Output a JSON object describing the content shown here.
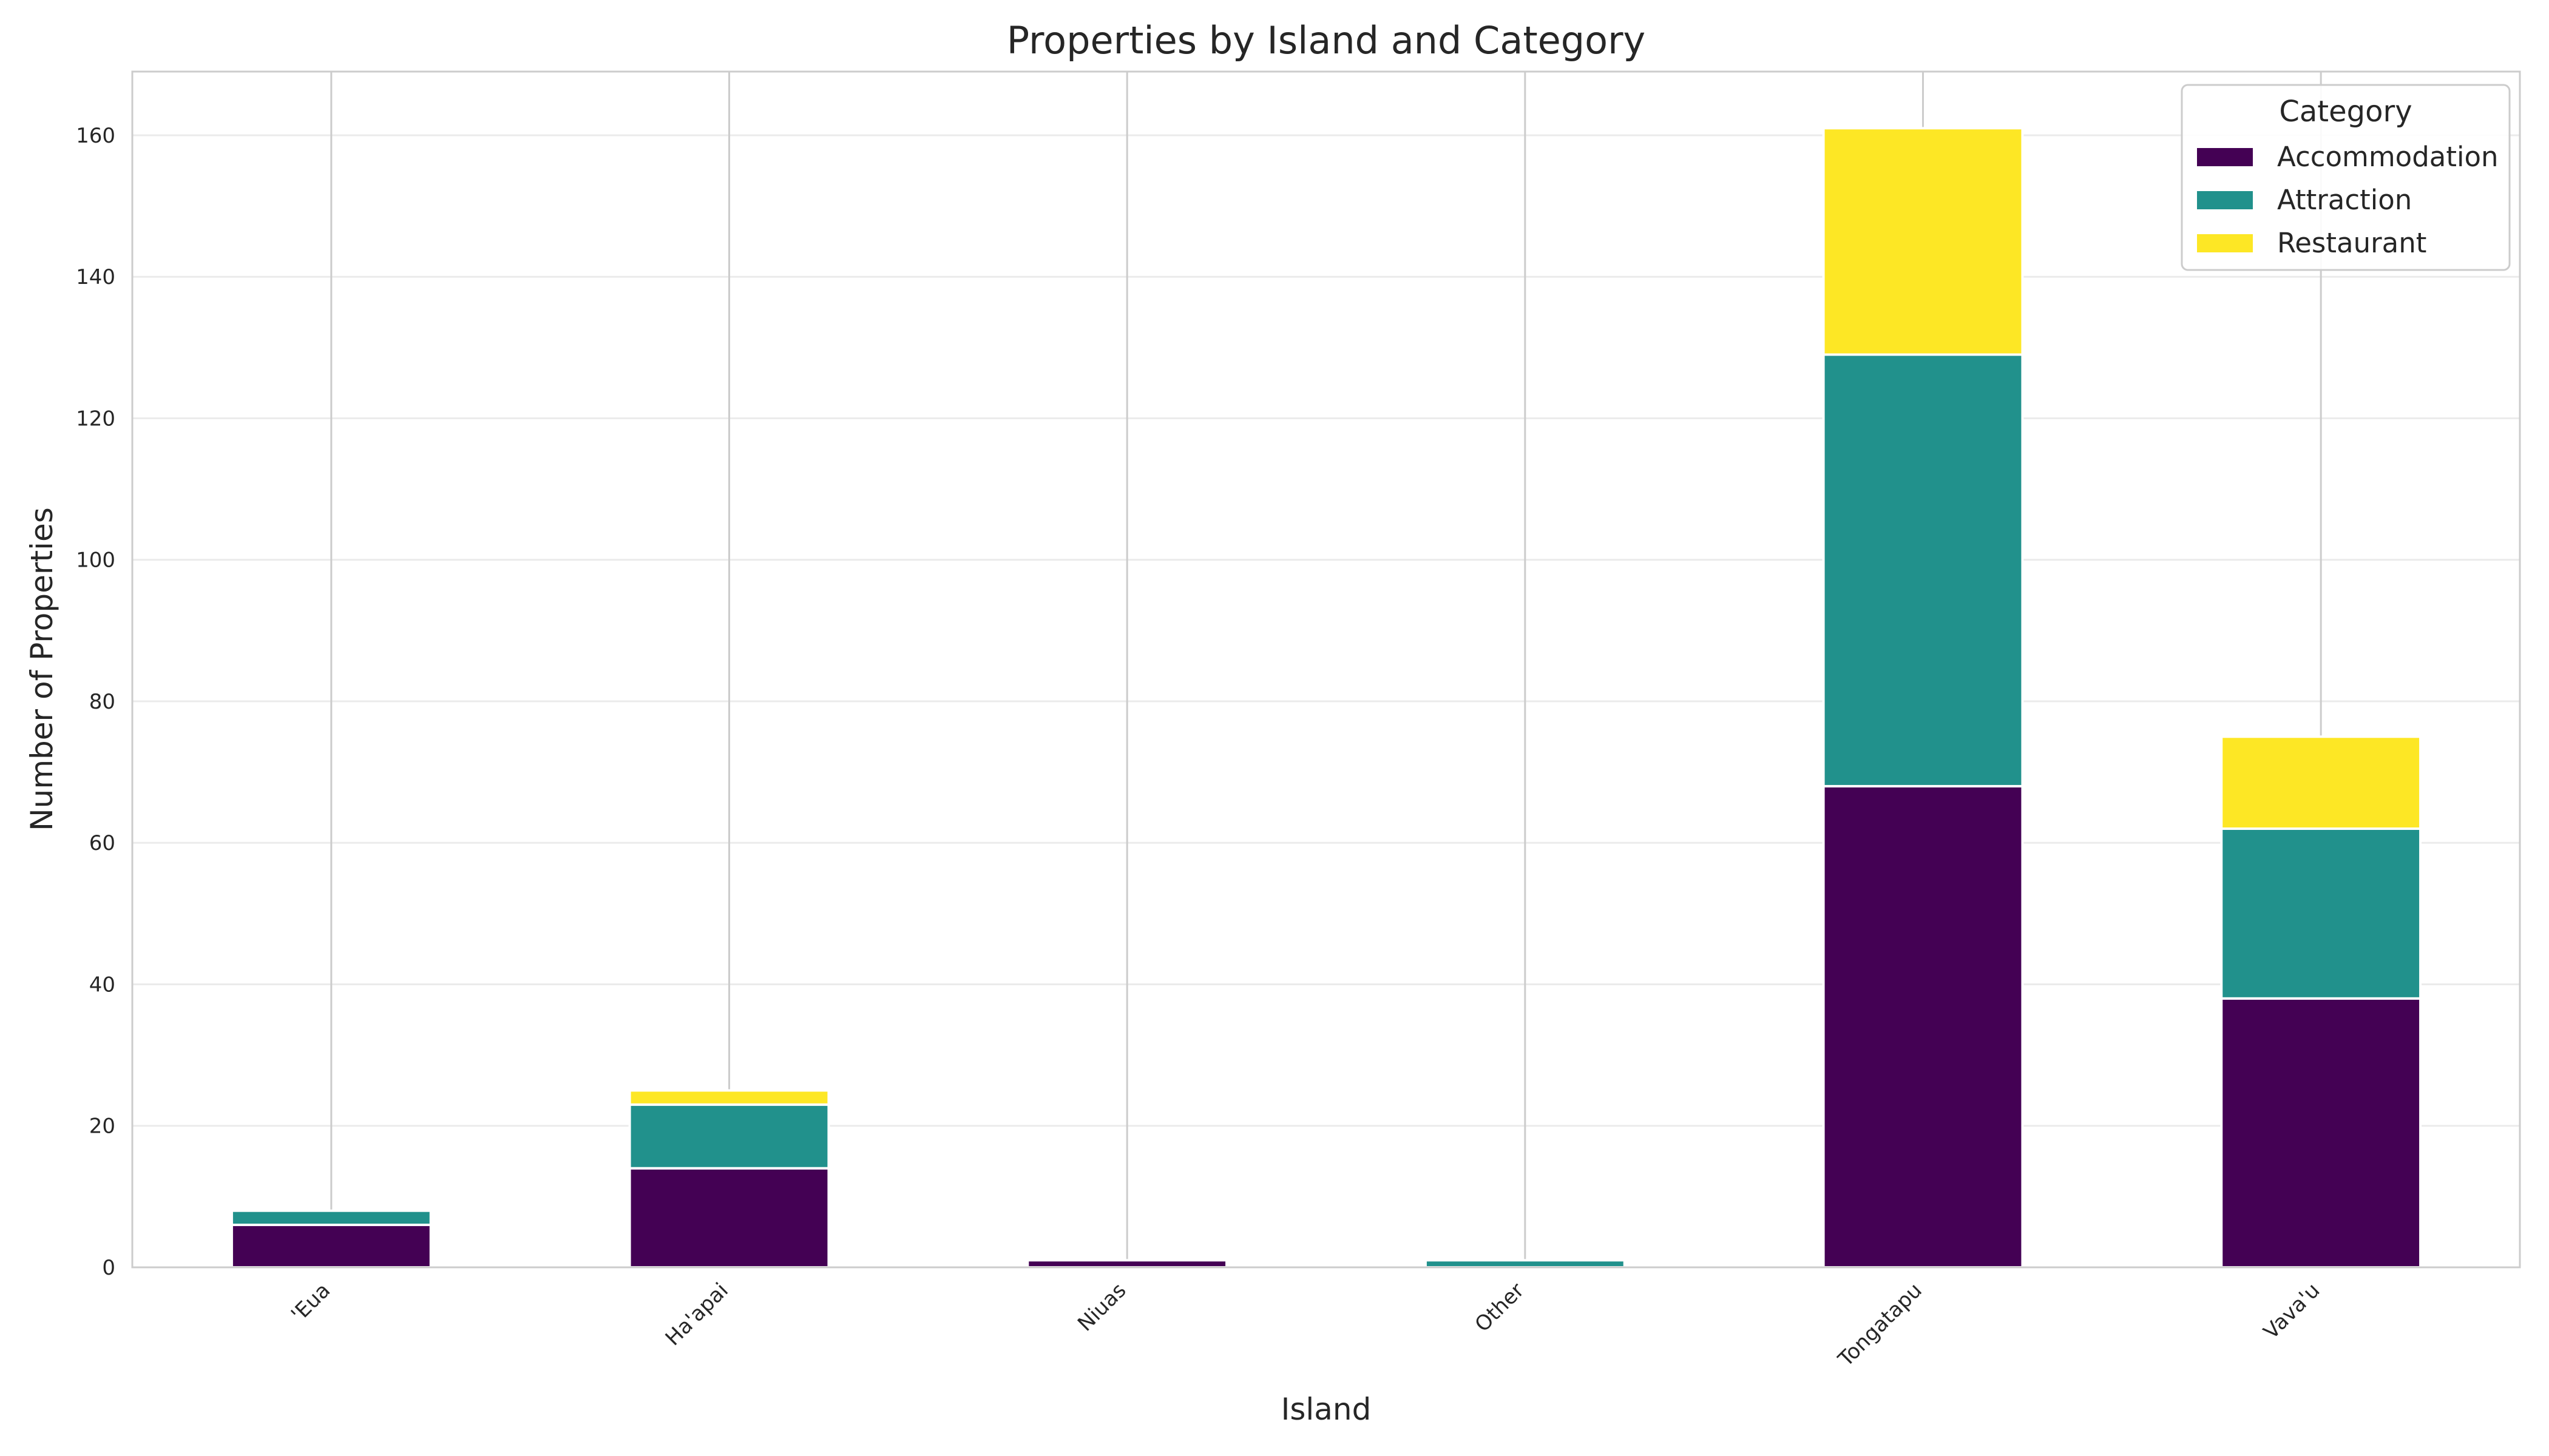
{
  "chart_data": {
    "type": "bar",
    "stacked": true,
    "title": "Properties by Island and Category",
    "xlabel": "Island",
    "ylabel": "Number of Properties",
    "categories": [
      "'Eua",
      "Ha'apai",
      "Niuas",
      "Other",
      "Tongatapu",
      "Vava'u"
    ],
    "series": [
      {
        "name": "Accommodation",
        "color": "#440154",
        "values": [
          6,
          14,
          1,
          0,
          68,
          38
        ]
      },
      {
        "name": "Attraction",
        "color": "#21918c",
        "values": [
          2,
          9,
          0,
          1,
          61,
          24
        ]
      },
      {
        "name": "Restaurant",
        "color": "#fde725",
        "values": [
          0,
          2,
          0,
          0,
          32,
          13
        ]
      }
    ],
    "ylim": [
      0,
      169
    ],
    "yticks": [
      0,
      20,
      40,
      60,
      80,
      100,
      120,
      140,
      160
    ],
    "grid": true,
    "legend": {
      "title": "Category",
      "position": "top-right"
    }
  }
}
